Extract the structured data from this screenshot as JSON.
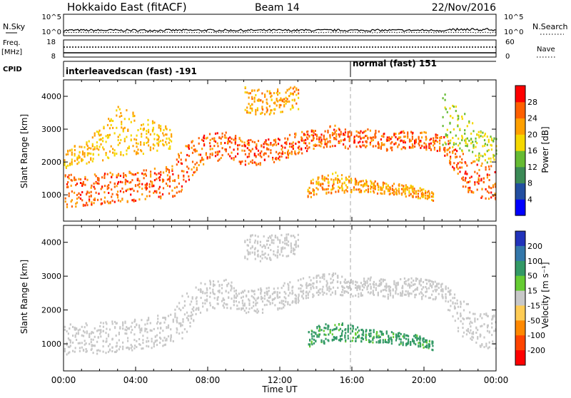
{
  "header": {
    "title": "Hokkaido East (fitACF)",
    "beam": "Beam 14",
    "date": "22/Nov/2016"
  },
  "top_panels": {
    "nsky": {
      "label": "N.Sky",
      "right_label": "N.Search",
      "left_ticks": [
        "10^5",
        "10^0"
      ],
      "right_ticks": [
        "10^5",
        "10^0"
      ]
    },
    "freq": {
      "label_top": "Freq.",
      "label_unit": "[MHz]",
      "right_label": "Nave",
      "left_ticks": [
        "18",
        "8"
      ],
      "right_ticks": [
        "60",
        "0"
      ]
    },
    "cpid": {
      "label": "CPID",
      "segments": [
        {
          "name": "interleavedscan (fast) -191",
          "start_hour": 0,
          "end_hour": 16
        },
        {
          "name": "normal (fast) 151",
          "start_hour": 16,
          "end_hour": 24
        }
      ]
    }
  },
  "chart_data": [
    {
      "type": "heatmap",
      "panel": "power",
      "ylabel": "Slant Range [km]",
      "xlim": [
        0,
        24
      ],
      "ylim": [
        200,
        4500
      ],
      "yticks": [
        1000,
        2000,
        3000,
        4000
      ],
      "colorbar": {
        "label": "Power [dB]",
        "ticks": [
          4,
          8,
          12,
          16,
          20,
          24,
          28
        ],
        "range": [
          0,
          32
        ],
        "colors": [
          "#0000ff",
          "#224ea0",
          "#3b8a56",
          "#66bb33",
          "#f5d800",
          "#ffa000",
          "#ff6000",
          "#ff0000"
        ]
      },
      "bands": [
        {
          "hours": [
            0,
            1,
            2,
            3,
            4,
            5,
            6,
            6.5,
            7,
            7.5,
            8,
            9,
            10,
            11,
            12,
            13,
            14,
            15,
            16,
            17,
            18,
            19,
            20,
            21,
            22,
            23,
            24
          ],
          "low": [
            600,
            650,
            700,
            750,
            800,
            850,
            900,
            1100,
            1500,
            1800,
            2000,
            2050,
            1900,
            1900,
            2000,
            2200,
            2400,
            2450,
            2350,
            2450,
            2300,
            2400,
            2300,
            2300,
            1200,
            900,
            800
          ],
          "high": [
            1600,
            1600,
            1650,
            1700,
            1700,
            1800,
            1900,
            2400,
            2600,
            2800,
            2850,
            2900,
            2700,
            2650,
            2750,
            2900,
            3000,
            3100,
            2900,
            3000,
            2850,
            2950,
            2900,
            2800,
            2300,
            2000,
            1900
          ],
          "power": 26
        },
        {
          "hours": [
            0,
            1,
            2,
            3,
            4,
            5,
            6
          ],
          "low": [
            1800,
            1900,
            2000,
            2100,
            2200,
            2300,
            2400
          ],
          "high": [
            2300,
            2600,
            3000,
            3700,
            3500,
            3200,
            3000
          ],
          "power": 20
        },
        {
          "hours": [
            13.5,
            15,
            16.5,
            18,
            19.5,
            20.5
          ],
          "low": [
            900,
            1050,
            1050,
            1000,
            900,
            800
          ],
          "high": [
            1400,
            1700,
            1450,
            1350,
            1250,
            1050
          ],
          "power": 22
        },
        {
          "hours": [
            10,
            11,
            12,
            13
          ],
          "low": [
            3500,
            3400,
            3500,
            3600
          ],
          "high": [
            4300,
            4200,
            4200,
            4300
          ],
          "power": 22
        },
        {
          "hours": [
            21,
            22,
            23,
            24
          ],
          "low": [
            2500,
            2300,
            2000,
            1900
          ],
          "high": [
            4200,
            3600,
            3000,
            2700
          ],
          "power": 16
        }
      ]
    },
    {
      "type": "heatmap",
      "panel": "velocity",
      "ylabel": "Slant Range [km]",
      "xlabel": "Time UT",
      "xlim": [
        0,
        24
      ],
      "ylim": [
        200,
        4500
      ],
      "yticks": [
        1000,
        2000,
        3000,
        4000
      ],
      "xticks": [
        "00:00",
        "04:00",
        "08:00",
        "12:00",
        "16:00",
        "20:00",
        "00:00"
      ],
      "colorbar": {
        "label": "Velocity [m s⁻¹]",
        "ticks": [
          200,
          100,
          50,
          15,
          -15,
          -50,
          -100,
          -200
        ],
        "colors": [
          "#2233bb",
          "#3377aa",
          "#339966",
          "#66cc33",
          "#c8c8c8",
          "#ffcc55",
          "#ff8800",
          "#ff4400",
          "#ff0000"
        ]
      },
      "bands": [
        {
          "hours": [
            0,
            1,
            2,
            3,
            4,
            5,
            6,
            6.5,
            7,
            7.5,
            8,
            9,
            10,
            11,
            12,
            13,
            14,
            15,
            16,
            17,
            18,
            19,
            20,
            21,
            22,
            23,
            24
          ],
          "low": [
            600,
            650,
            700,
            750,
            800,
            850,
            900,
            1100,
            1500,
            1800,
            2000,
            2050,
            1900,
            1900,
            2000,
            2200,
            2400,
            2450,
            2350,
            2450,
            2300,
            2400,
            2300,
            2300,
            1200,
            900,
            800
          ],
          "high": [
            1600,
            1600,
            1650,
            1700,
            1700,
            1800,
            1900,
            2400,
            2600,
            2800,
            2850,
            2900,
            2700,
            2650,
            2750,
            2900,
            3000,
            3100,
            2900,
            3000,
            2850,
            2950,
            2900,
            2800,
            2300,
            2000,
            1900
          ],
          "velocity": 0
        },
        {
          "hours": [
            13.5,
            15,
            16.5,
            18,
            19.5,
            20.5
          ],
          "low": [
            900,
            1050,
            1050,
            1000,
            900,
            800
          ],
          "high": [
            1400,
            1700,
            1450,
            1350,
            1250,
            1050
          ],
          "velocity": 60
        },
        {
          "hours": [
            10,
            11,
            12,
            13
          ],
          "low": [
            3500,
            3400,
            3500,
            3600
          ],
          "high": [
            4300,
            4200,
            4200,
            4300
          ],
          "velocity": 0
        }
      ]
    }
  ]
}
